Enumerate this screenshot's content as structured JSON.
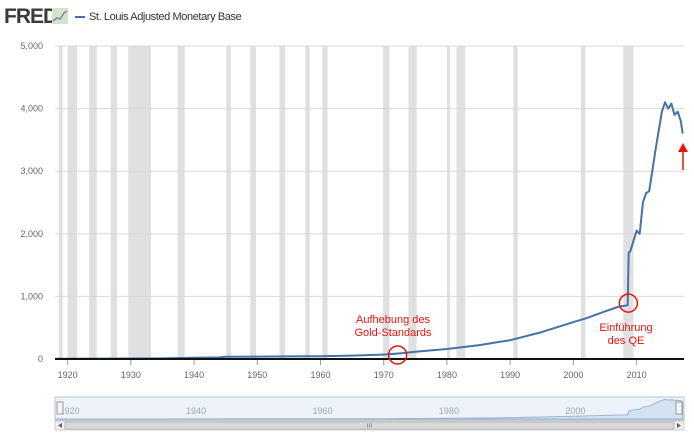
{
  "header": {
    "logo_text": "FRED",
    "logo_icon": "mini-line-chart-icon",
    "series_legend": "St. Louis Adjusted Monetary Base"
  },
  "colors": {
    "series": "#4572a7",
    "recession": "#e0e0e0",
    "annotation": "#e8120c",
    "navigator_fill": "#d3e2f3",
    "navigator_bg": "#eef3fa"
  },
  "annotations": {
    "gold": "Aufhebung des\nGold-Standards",
    "qe": "Einführung\ndes QE"
  },
  "navigator": {
    "labels": [
      "1920",
      "1940",
      "1960",
      "1980",
      "2000"
    ],
    "scroll_left_icon": "arrow-left-icon",
    "scroll_right_icon": "arrow-right-icon",
    "scroll_grip_icon": "grip-icon"
  },
  "chart_data": {
    "type": "line",
    "title": "",
    "xlabel": "",
    "ylabel": "",
    "xlim": [
      1918,
      2017.5
    ],
    "ylim": [
      0,
      5000
    ],
    "x_ticks": [
      "1920",
      "1930",
      "1940",
      "1950",
      "1960",
      "1970",
      "1980",
      "1990",
      "2000",
      "2010"
    ],
    "y_ticks": [
      "0",
      "1,000",
      "2,000",
      "3,000",
      "4,000",
      "5,000"
    ],
    "grid": "horizontal",
    "legend": "top-left",
    "series": [
      {
        "name": "St. Louis Adjusted Monetary Base",
        "x": [
          1918,
          1925,
          1930,
          1935,
          1940,
          1944,
          1945,
          1950,
          1955,
          1960,
          1965,
          1970,
          1973,
          1975,
          1980,
          1985,
          1990,
          1995,
          2000,
          2002,
          2005,
          2007,
          2008.6,
          2008.75,
          2009,
          2010,
          2010.5,
          2011,
          2011.5,
          2012,
          2013,
          2014,
          2014.5,
          2015,
          2015.5,
          2016,
          2016.5,
          2017,
          2017.3
        ],
        "y": [
          5,
          7,
          8,
          10,
          20,
          25,
          35,
          38,
          42,
          45,
          55,
          70,
          95,
          115,
          160,
          220,
          300,
          430,
          590,
          650,
          760,
          830,
          860,
          1700,
          1720,
          2050,
          2000,
          2500,
          2650,
          2680,
          3350,
          3950,
          4100,
          4000,
          4080,
          3900,
          3950,
          3800,
          3600
        ]
      }
    ],
    "recessions": [
      [
        1918.6,
        1919.2
      ],
      [
        1920.0,
        1921.5
      ],
      [
        1923.4,
        1924.6
      ],
      [
        1926.8,
        1927.8
      ],
      [
        1929.6,
        1933.2
      ],
      [
        1937.4,
        1938.5
      ],
      [
        1945.1,
        1945.8
      ],
      [
        1948.9,
        1949.8
      ],
      [
        1953.5,
        1954.4
      ],
      [
        1957.6,
        1958.3
      ],
      [
        1960.3,
        1961.1
      ],
      [
        1969.9,
        1970.9
      ],
      [
        1973.9,
        1975.2
      ],
      [
        1980.0,
        1980.5
      ],
      [
        1981.5,
        1982.9
      ],
      [
        1990.5,
        1991.2
      ],
      [
        2001.2,
        2001.9
      ],
      [
        2007.9,
        2009.5
      ]
    ]
  }
}
